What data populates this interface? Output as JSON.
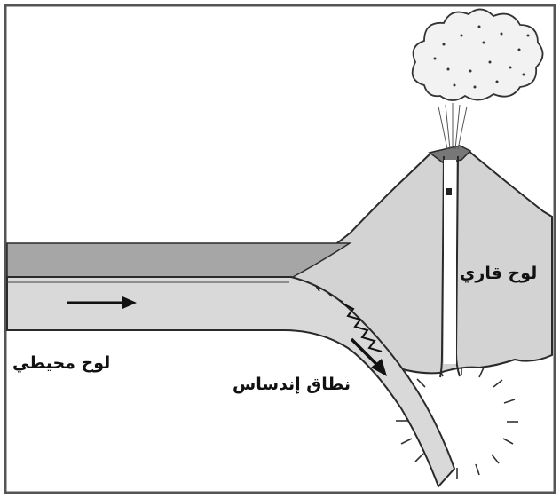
{
  "labels": {
    "oceanic_plate": "لوح محيطي",
    "continental_plate": "لوح قاري",
    "subduction_zone": "نطاق إندساس"
  },
  "colors": {
    "frame": "#555555",
    "ocean_water": "#a6a6a6",
    "oceanic_plate_fill": "#d9d9d9",
    "continent_fill": "#d3d3d3",
    "outline": "#2a2a2a",
    "arrow": "#111111",
    "volcano_vent": "#777777"
  },
  "icons": {
    "plate_motion_arrow": "right-arrow",
    "subduction_arrow": "down-right-arrow",
    "friction_zigzag": "zigzag",
    "volcano_cloud": "ash-cloud",
    "magma_chamber": "radiating-burst"
  }
}
